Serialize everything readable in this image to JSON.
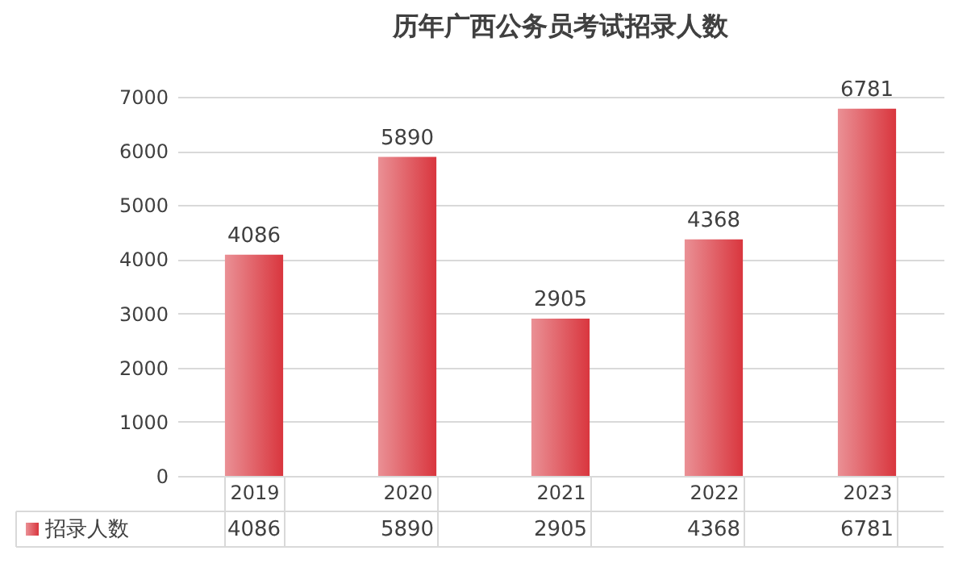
{
  "chart_data": {
    "type": "bar",
    "title": "历年广西公务员考试招录人数",
    "categories": [
      "2019",
      "2020",
      "2021",
      "2022",
      "2023"
    ],
    "series": [
      {
        "name": "招录人数",
        "color": "#d9363e",
        "values": [
          4086,
          5890,
          2905,
          4368,
          6781
        ],
        "value_labels": [
          "4086",
          "5890",
          "2905",
          "4368",
          "6781"
        ]
      }
    ],
    "annotations": [
      "4086",
      "5890",
      "2905",
      "4368",
      "6781"
    ],
    "ylim": [
      0,
      7000
    ],
    "yticks": [
      0,
      1000,
      2000,
      3000,
      4000,
      5000,
      6000,
      7000
    ],
    "grid": "y",
    "legend": "bottom"
  }
}
